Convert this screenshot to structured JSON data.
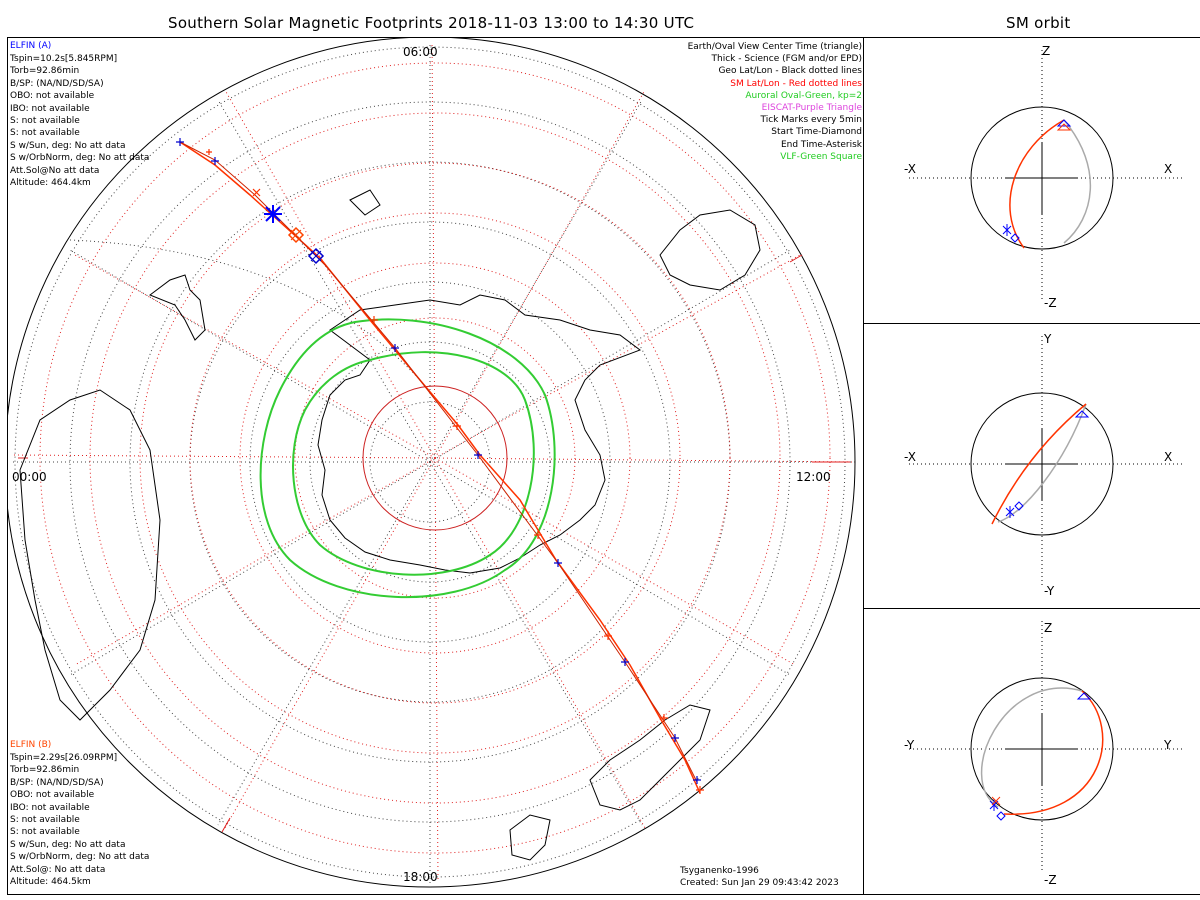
{
  "title": "Southern Solar Magnetic Footprints 2018-11-03 13:00 to 14:30 UTC",
  "orbit_title": "SM orbit",
  "time_labels": {
    "top": "06:00",
    "left": "00:00",
    "right": "12:00",
    "bottom": "18:00"
  },
  "elfin_a": {
    "name": "ELFIN (A)",
    "lines": [
      "Tspin=10.2s[5.845RPM]",
      "Torb=92.86min",
      "B/SP: (NA/ND/SD/SA)",
      "OBO: not available",
      "IBO: not available",
      "S: not available",
      "S: not available",
      "S w/Sun, deg: No att data",
      "S w/OrbNorm, deg: No att data",
      "Att.Sol@No att data",
      "Altitude: 464.4km"
    ],
    "color": "#0000ff"
  },
  "elfin_b": {
    "name": "ELFIN (B)",
    "lines": [
      "Tspin=2.29s[26.09RPM]",
      "Torb=92.86min",
      "B/SP: (NA/ND/SD/SA)",
      "OBO: not available",
      "IBO: not available",
      "S: not available",
      "S: not available",
      "S w/Sun, deg: No att data",
      "S w/OrbNorm, deg: No att data",
      "Att.Sol@: No att data",
      "Altitude: 464.5km"
    ],
    "color": "#ff4500"
  },
  "legend": [
    {
      "text": "Earth/Oval View Center Time (triangle)",
      "color": "#000000"
    },
    {
      "text": "Thick - Science (FGM and/or EPD)",
      "color": "#000000"
    },
    {
      "text": "Geo Lat/Lon - Black dotted lines",
      "color": "#000000"
    },
    {
      "text": "SM Lat/Lon - Red dotted lines",
      "color": "#ff0000"
    },
    {
      "text": "Auroral Oval-Green, kp=2",
      "color": "#22cc22"
    },
    {
      "text": "EISCAT-Purple Triangle",
      "color": "#dd44dd"
    },
    {
      "text": "Tick Marks every 5min",
      "color": "#000000"
    },
    {
      "text": "Start Time-Diamond",
      "color": "#000000"
    },
    {
      "text": "End Time-Asterisk",
      "color": "#000000"
    },
    {
      "text": "VLF-Green Square",
      "color": "#22cc22"
    }
  ],
  "credit": {
    "model": "Tsyganenko-1996",
    "created": "Created: Sun Jan 29 09:43:42 2023"
  },
  "orbit_panels": [
    {
      "up": "Z",
      "down": "-Z",
      "left": "-X",
      "right": "X"
    },
    {
      "up": "Y",
      "down": "-Y",
      "left": "-X",
      "right": "X"
    },
    {
      "up": "Z",
      "down": "-Z",
      "left": "-Y",
      "right": "Y"
    }
  ]
}
